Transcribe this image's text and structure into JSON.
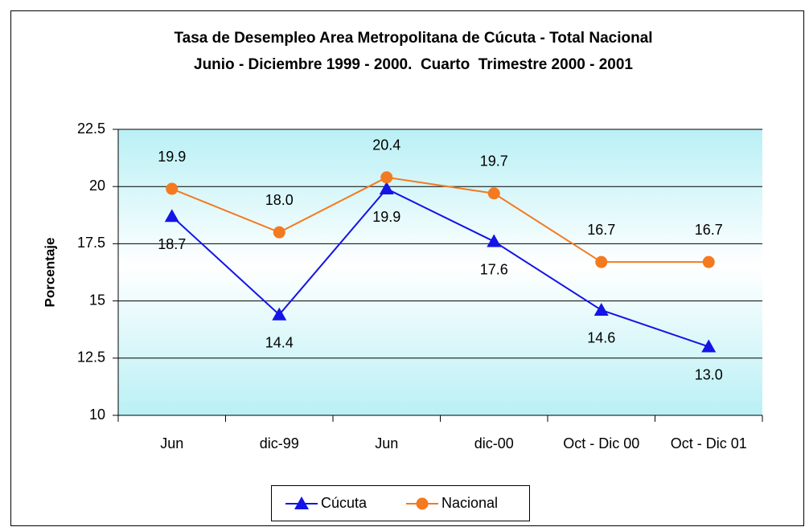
{
  "chart_data": {
    "type": "line",
    "title": "Tasa de Desempleo Area Metropolitana de Cúcuta - Total Nacional",
    "subtitle": "Junio - Diciembre 1999 - 2000.  Cuarto  Trimestre 2000 - 2001",
    "y_label": "Porcentaje",
    "categories": [
      "Jun",
      "dic-99",
      "Jun",
      "dic-00",
      "Oct - Dic 00",
      "Oct - Dic 01"
    ],
    "series": [
      {
        "name": "Cúcuta",
        "color": "#1414e6",
        "marker": "triangle",
        "label_position": "below",
        "values": [
          18.7,
          14.4,
          19.9,
          17.6,
          14.6,
          13.0
        ],
        "value_labels": [
          "18.7",
          "14.4",
          "19.9",
          "17.6",
          "14.6",
          "13.0"
        ]
      },
      {
        "name": "Nacional",
        "color": "#f47a1f",
        "marker": "circle",
        "label_position": "above",
        "values": [
          19.9,
          18.0,
          20.4,
          19.7,
          16.7,
          16.7
        ],
        "value_labels": [
          "19.9",
          "18.0",
          "20.4",
          "19.7",
          "16.7",
          "16.7"
        ]
      }
    ],
    "ylim": [
      10,
      22.5
    ],
    "yticks": [
      10,
      12.5,
      15,
      17.5,
      20,
      22.5
    ],
    "grid": true,
    "legend": "bottom"
  }
}
